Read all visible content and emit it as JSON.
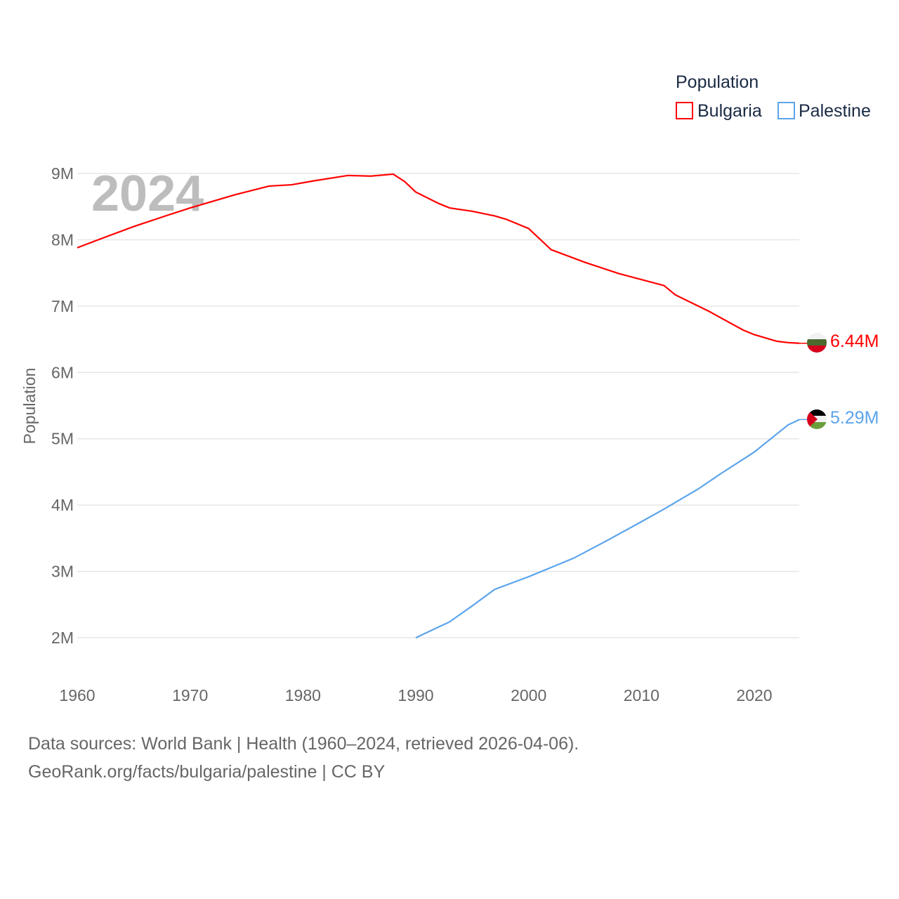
{
  "chart_data": {
    "type": "line",
    "title": "",
    "watermark_year": "2024",
    "xlabel": "",
    "ylabel": "Population",
    "xlim": [
      1960,
      2024
    ],
    "ylim": [
      2000000,
      9000000
    ],
    "x_ticks": [
      "1960",
      "1970",
      "1980",
      "1990",
      "2000",
      "2010",
      "2020"
    ],
    "y_ticks": [
      "2M",
      "3M",
      "4M",
      "5M",
      "6M",
      "7M",
      "8M",
      "9M"
    ],
    "grid": true,
    "legend": {
      "title": "Population",
      "placement": "top-right"
    },
    "series": [
      {
        "name": "Bulgaria",
        "color": "#ff0000",
        "end_label": "6.44M",
        "flag": "bulgaria-flag",
        "x": [
          1960,
          1962,
          1965,
          1968,
          1970,
          1974,
          1977,
          1979,
          1981,
          1984,
          1986,
          1988,
          1989,
          1990,
          1992,
          1993,
          1995,
          1997,
          1998,
          2000,
          2002,
          2005,
          2008,
          2012,
          2013,
          2016,
          2019,
          2020,
          2022,
          2023,
          2024
        ],
        "y": [
          7.88,
          8.01,
          8.2,
          8.37,
          8.48,
          8.68,
          8.81,
          8.83,
          8.89,
          8.97,
          8.96,
          8.99,
          8.88,
          8.72,
          8.55,
          8.48,
          8.43,
          8.36,
          8.31,
          8.17,
          7.85,
          7.66,
          7.49,
          7.31,
          7.17,
          6.92,
          6.64,
          6.57,
          6.47,
          6.45,
          6.44
        ]
      },
      {
        "name": "Palestine",
        "color": "#5ba4ec",
        "end_label": "5.29M",
        "flag": "palestine-flag",
        "x": [
          1990,
          1993,
          1995,
          1997,
          2000,
          2004,
          2007,
          2010,
          2012,
          2015,
          2017,
          2020,
          2023,
          2024
        ],
        "y": [
          2.0,
          2.24,
          2.48,
          2.73,
          2.92,
          3.2,
          3.47,
          3.75,
          3.94,
          4.24,
          4.47,
          4.8,
          5.21,
          5.29
        ]
      }
    ]
  },
  "footer": {
    "line1": "Data sources: World Bank | Health (1960–2024, retrieved 2026-04-06).",
    "line2": "GeoRank.org/facts/bulgaria/palestine | CC BY"
  }
}
